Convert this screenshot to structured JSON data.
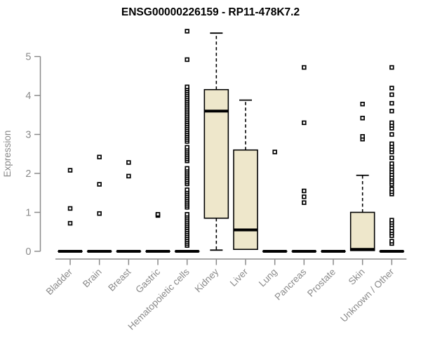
{
  "chart_data": {
    "type": "boxplot",
    "title": "ENSG00000226159 - RP11-478K7.2",
    "ylabel": "Expression",
    "xlabel": "",
    "ylim": [
      0,
      5.8
    ],
    "yticks": [
      0,
      1,
      2,
      3,
      4,
      5
    ],
    "grid": false,
    "legend": "none",
    "colors": {
      "box_fill": "#EEE7CB",
      "box_border": "#000000",
      "median": "#000000",
      "whisker": "#000000",
      "outlier": "#000000",
      "axis": "#8a8a8a",
      "tick_label": "#8a8a8a",
      "title": "#000000",
      "background": "#ffffff"
    },
    "categories": [
      "Bladder",
      "Brain",
      "Breast",
      "Gastric",
      "Hematopoietic cells",
      "Kidney",
      "Liver",
      "Lung",
      "Pancreas",
      "Prostate",
      "Skin",
      "Unknown / Other"
    ],
    "boxes": [
      {
        "category": "Bladder",
        "low": 0,
        "q1": 0,
        "median": 0,
        "q3": 0,
        "high": 0,
        "outliers": [
          0.72,
          1.1,
          2.08
        ]
      },
      {
        "category": "Brain",
        "low": 0,
        "q1": 0,
        "median": 0,
        "q3": 0,
        "high": 0,
        "outliers": [
          0.97,
          1.72,
          2.42
        ]
      },
      {
        "category": "Breast",
        "low": 0,
        "q1": 0,
        "median": 0,
        "q3": 0,
        "high": 0,
        "outliers": [
          1.93,
          2.28
        ]
      },
      {
        "category": "Gastric",
        "low": 0,
        "q1": 0,
        "median": 0,
        "q3": 0,
        "high": 0,
        "outliers": [
          0.92,
          0.95
        ]
      },
      {
        "category": "Hematopoietic cells",
        "low": 0,
        "q1": 0,
        "median": 0,
        "q3": 0,
        "high": 0,
        "outliers": [
          0.15,
          0.2,
          0.25,
          0.3,
          0.35,
          0.4,
          0.45,
          0.5,
          0.55,
          0.6,
          0.65,
          0.7,
          0.75,
          0.8,
          0.85,
          0.9,
          0.95,
          1.13,
          1.18,
          1.23,
          1.28,
          1.33,
          1.38,
          1.43,
          1.48,
          1.53,
          1.58,
          1.73,
          1.78,
          1.83,
          1.88,
          1.93,
          1.98,
          2.03,
          2.08,
          2.13,
          2.32,
          2.37,
          2.42,
          2.47,
          2.52,
          2.57,
          2.62,
          2.67,
          2.82,
          2.87,
          2.92,
          2.97,
          3.02,
          3.07,
          3.12,
          3.17,
          3.22,
          3.27,
          3.32,
          3.37,
          3.42,
          3.47,
          3.52,
          3.57,
          3.62,
          3.67,
          3.72,
          3.77,
          3.82,
          3.87,
          3.92,
          3.97,
          4.02,
          4.07,
          4.12,
          4.17,
          4.22,
          4.92,
          5.65
        ]
      },
      {
        "category": "Kidney",
        "low": 0.03,
        "q1": 0.85,
        "median": 3.6,
        "q3": 4.15,
        "high": 5.6,
        "outliers": []
      },
      {
        "category": "Liver",
        "low": 0.05,
        "q1": 0.05,
        "median": 0.55,
        "q3": 2.6,
        "high": 3.88,
        "outliers": []
      },
      {
        "category": "Lung",
        "low": 0,
        "q1": 0,
        "median": 0,
        "q3": 0,
        "high": 0,
        "outliers": [
          2.55
        ]
      },
      {
        "category": "Pancreas",
        "low": 0,
        "q1": 0,
        "median": 0,
        "q3": 0,
        "high": 0,
        "outliers": [
          1.25,
          1.4,
          1.55,
          3.3,
          4.72
        ]
      },
      {
        "category": "Prostate",
        "low": 0,
        "q1": 0,
        "median": 0,
        "q3": 0,
        "high": 0,
        "outliers": []
      },
      {
        "category": "Skin",
        "low": 0.02,
        "q1": 0.02,
        "median": 0.05,
        "q3": 1.0,
        "high": 1.95,
        "outliers": [
          2.88,
          2.95,
          3.42,
          3.78
        ]
      },
      {
        "category": "Unknown / Other",
        "low": 0,
        "q1": 0,
        "median": 0,
        "q3": 0,
        "high": 0,
        "outliers": [
          0.2,
          0.26,
          0.4,
          0.47,
          0.53,
          0.6,
          0.68,
          0.74,
          0.8,
          1.47,
          1.53,
          1.6,
          1.72,
          1.78,
          1.85,
          1.9,
          1.97,
          2.04,
          2.11,
          2.18,
          2.25,
          2.4,
          2.55,
          2.62,
          2.69,
          2.76,
          3.0,
          3.16,
          3.23,
          3.3,
          3.6,
          3.8,
          4.02,
          4.19,
          4.72
        ]
      }
    ]
  }
}
